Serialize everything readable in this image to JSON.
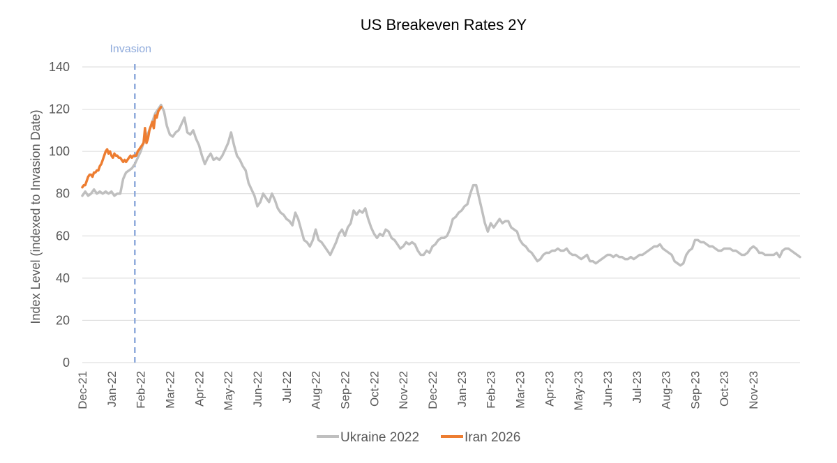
{
  "chart_data": {
    "type": "line",
    "title": "US Breakeven Rates 2Y",
    "xlabel": "",
    "ylabel": "Index Level (indexed to Invasion Date)",
    "ylim": [
      0,
      140
    ],
    "yticks": [
      0,
      20,
      40,
      60,
      80,
      100,
      120,
      140
    ],
    "x_unit": "months since Dec-21",
    "xlim": [
      0,
      24.6
    ],
    "xticks": [
      {
        "label": "Dec-21",
        "x": 0
      },
      {
        "label": "Jan-22",
        "x": 1
      },
      {
        "label": "Feb-22",
        "x": 2
      },
      {
        "label": "Mar-22",
        "x": 3
      },
      {
        "label": "Apr-22",
        "x": 4
      },
      {
        "label": "May-22",
        "x": 5
      },
      {
        "label": "Jun-22",
        "x": 6
      },
      {
        "label": "Jul-22",
        "x": 7
      },
      {
        "label": "Aug-22",
        "x": 8
      },
      {
        "label": "Sep-22",
        "x": 9
      },
      {
        "label": "Oct-22",
        "x": 10
      },
      {
        "label": "Nov-22",
        "x": 11
      },
      {
        "label": "Dec-22",
        "x": 12
      },
      {
        "label": "Jan-23",
        "x": 13
      },
      {
        "label": "Feb-23",
        "x": 14
      },
      {
        "label": "Mar-23",
        "x": 15
      },
      {
        "label": "Apr-23",
        "x": 16
      },
      {
        "label": "May-23",
        "x": 17
      },
      {
        "label": "Jun-23",
        "x": 18
      },
      {
        "label": "Jul-23",
        "x": 19
      },
      {
        "label": "Aug-23",
        "x": 20
      },
      {
        "label": "Sep-23",
        "x": 21
      },
      {
        "label": "Oct-23",
        "x": 22
      },
      {
        "label": "Nov-23",
        "x": 23
      }
    ],
    "annotation": {
      "label": "Invasion",
      "x": 1.8,
      "color": "#8eaadb"
    },
    "series": [
      {
        "name": "Ukraine 2022",
        "color": "#bfbfbf",
        "points": [
          [
            0.0,
            79
          ],
          [
            0.1,
            81
          ],
          [
            0.2,
            79
          ],
          [
            0.3,
            80
          ],
          [
            0.4,
            82
          ],
          [
            0.5,
            80
          ],
          [
            0.6,
            81
          ],
          [
            0.7,
            80
          ],
          [
            0.8,
            81
          ],
          [
            0.9,
            80
          ],
          [
            1.0,
            81
          ],
          [
            1.1,
            79
          ],
          [
            1.2,
            80
          ],
          [
            1.3,
            80
          ],
          [
            1.4,
            87
          ],
          [
            1.5,
            90
          ],
          [
            1.6,
            91
          ],
          [
            1.7,
            92
          ],
          [
            1.8,
            94
          ],
          [
            1.9,
            97
          ],
          [
            2.0,
            100
          ],
          [
            2.1,
            104
          ],
          [
            2.2,
            107
          ],
          [
            2.3,
            110
          ],
          [
            2.4,
            114
          ],
          [
            2.5,
            118
          ],
          [
            2.6,
            120
          ],
          [
            2.7,
            122
          ],
          [
            2.8,
            119
          ],
          [
            2.9,
            112
          ],
          [
            3.0,
            108
          ],
          [
            3.1,
            107
          ],
          [
            3.2,
            109
          ],
          [
            3.3,
            110
          ],
          [
            3.4,
            113
          ],
          [
            3.5,
            116
          ],
          [
            3.6,
            109
          ],
          [
            3.7,
            108
          ],
          [
            3.8,
            110
          ],
          [
            3.9,
            106
          ],
          [
            4.0,
            103
          ],
          [
            4.1,
            98
          ],
          [
            4.2,
            94
          ],
          [
            4.3,
            97
          ],
          [
            4.4,
            99
          ],
          [
            4.5,
            96
          ],
          [
            4.6,
            97
          ],
          [
            4.7,
            96
          ],
          [
            4.8,
            98
          ],
          [
            4.9,
            101
          ],
          [
            5.0,
            104
          ],
          [
            5.1,
            109
          ],
          [
            5.2,
            103
          ],
          [
            5.3,
            98
          ],
          [
            5.4,
            96
          ],
          [
            5.5,
            93
          ],
          [
            5.6,
            91
          ],
          [
            5.7,
            85
          ],
          [
            5.8,
            82
          ],
          [
            5.9,
            79
          ],
          [
            6.0,
            74
          ],
          [
            6.1,
            76
          ],
          [
            6.2,
            80
          ],
          [
            6.3,
            78
          ],
          [
            6.4,
            76
          ],
          [
            6.5,
            80
          ],
          [
            6.6,
            77
          ],
          [
            6.7,
            73
          ],
          [
            6.8,
            71
          ],
          [
            6.9,
            70
          ],
          [
            7.0,
            68
          ],
          [
            7.1,
            67
          ],
          [
            7.2,
            65
          ],
          [
            7.3,
            71
          ],
          [
            7.4,
            68
          ],
          [
            7.5,
            63
          ],
          [
            7.6,
            58
          ],
          [
            7.7,
            57
          ],
          [
            7.8,
            55
          ],
          [
            7.9,
            58
          ],
          [
            8.0,
            63
          ],
          [
            8.1,
            58
          ],
          [
            8.2,
            57
          ],
          [
            8.3,
            55
          ],
          [
            8.4,
            53
          ],
          [
            8.5,
            51
          ],
          [
            8.6,
            54
          ],
          [
            8.7,
            57
          ],
          [
            8.8,
            61
          ],
          [
            8.9,
            63
          ],
          [
            9.0,
            60
          ],
          [
            9.1,
            64
          ],
          [
            9.2,
            66
          ],
          [
            9.3,
            72
          ],
          [
            9.4,
            70
          ],
          [
            9.5,
            72
          ],
          [
            9.6,
            71
          ],
          [
            9.7,
            73
          ],
          [
            9.8,
            68
          ],
          [
            9.9,
            64
          ],
          [
            10.0,
            61
          ],
          [
            10.1,
            59
          ],
          [
            10.2,
            61
          ],
          [
            10.3,
            60
          ],
          [
            10.4,
            63
          ],
          [
            10.5,
            62
          ],
          [
            10.6,
            59
          ],
          [
            10.7,
            58
          ],
          [
            10.8,
            56
          ],
          [
            10.9,
            54
          ],
          [
            11.0,
            55
          ],
          [
            11.1,
            57
          ],
          [
            11.2,
            56
          ],
          [
            11.3,
            57
          ],
          [
            11.4,
            56
          ],
          [
            11.5,
            53
          ],
          [
            11.6,
            51
          ],
          [
            11.7,
            51
          ],
          [
            11.8,
            53
          ],
          [
            11.9,
            52
          ],
          [
            12.0,
            55
          ],
          [
            12.1,
            56
          ],
          [
            12.2,
            58
          ],
          [
            12.3,
            59
          ],
          [
            12.4,
            59
          ],
          [
            12.5,
            60
          ],
          [
            12.6,
            63
          ],
          [
            12.7,
            68
          ],
          [
            12.8,
            69
          ],
          [
            12.9,
            71
          ],
          [
            13.0,
            72
          ],
          [
            13.1,
            74
          ],
          [
            13.2,
            75
          ],
          [
            13.3,
            80
          ],
          [
            13.4,
            84
          ],
          [
            13.5,
            84
          ],
          [
            13.6,
            78
          ],
          [
            13.7,
            72
          ],
          [
            13.8,
            66
          ],
          [
            13.9,
            62
          ],
          [
            14.0,
            66
          ],
          [
            14.1,
            64
          ],
          [
            14.2,
            66
          ],
          [
            14.3,
            68
          ],
          [
            14.4,
            66
          ],
          [
            14.5,
            67
          ],
          [
            14.6,
            67
          ],
          [
            14.7,
            64
          ],
          [
            14.8,
            63
          ],
          [
            14.9,
            62
          ],
          [
            15.0,
            58
          ],
          [
            15.1,
            56
          ],
          [
            15.2,
            55
          ],
          [
            15.3,
            53
          ],
          [
            15.4,
            52
          ],
          [
            15.5,
            50
          ],
          [
            15.6,
            48
          ],
          [
            15.7,
            49
          ],
          [
            15.8,
            51
          ],
          [
            15.9,
            52
          ],
          [
            16.0,
            52
          ],
          [
            16.1,
            53
          ],
          [
            16.2,
            53
          ],
          [
            16.3,
            54
          ],
          [
            16.4,
            53
          ],
          [
            16.5,
            53
          ],
          [
            16.6,
            54
          ],
          [
            16.7,
            52
          ],
          [
            16.8,
            51
          ],
          [
            16.9,
            51
          ],
          [
            17.0,
            50
          ],
          [
            17.1,
            49
          ],
          [
            17.2,
            50
          ],
          [
            17.3,
            51
          ],
          [
            17.4,
            48
          ],
          [
            17.5,
            48
          ],
          [
            17.6,
            47
          ],
          [
            17.7,
            48
          ],
          [
            17.8,
            49
          ],
          [
            17.9,
            50
          ],
          [
            18.0,
            51
          ],
          [
            18.1,
            51
          ],
          [
            18.2,
            50
          ],
          [
            18.3,
            51
          ],
          [
            18.4,
            50
          ],
          [
            18.5,
            50
          ],
          [
            18.6,
            49
          ],
          [
            18.7,
            49
          ],
          [
            18.8,
            50
          ],
          [
            18.9,
            49
          ],
          [
            19.0,
            50
          ],
          [
            19.1,
            51
          ],
          [
            19.2,
            51
          ],
          [
            19.3,
            52
          ],
          [
            19.4,
            53
          ],
          [
            19.5,
            54
          ],
          [
            19.6,
            55
          ],
          [
            19.7,
            55
          ],
          [
            19.8,
            56
          ],
          [
            19.9,
            54
          ],
          [
            20.0,
            53
          ],
          [
            20.1,
            52
          ],
          [
            20.2,
            51
          ],
          [
            20.3,
            48
          ],
          [
            20.4,
            47
          ],
          [
            20.5,
            46
          ],
          [
            20.6,
            47
          ],
          [
            20.7,
            51
          ],
          [
            20.8,
            53
          ],
          [
            20.9,
            54
          ],
          [
            21.0,
            58
          ],
          [
            21.1,
            58
          ],
          [
            21.2,
            57
          ],
          [
            21.3,
            57
          ],
          [
            21.4,
            56
          ],
          [
            21.5,
            55
          ],
          [
            21.6,
            55
          ],
          [
            21.7,
            54
          ],
          [
            21.8,
            53
          ],
          [
            21.9,
            53
          ],
          [
            22.0,
            54
          ],
          [
            22.1,
            54
          ],
          [
            22.2,
            54
          ],
          [
            22.3,
            53
          ],
          [
            22.4,
            53
          ],
          [
            22.5,
            52
          ],
          [
            22.6,
            51
          ],
          [
            22.7,
            51
          ],
          [
            22.8,
            52
          ],
          [
            22.9,
            54
          ],
          [
            23.0,
            55
          ],
          [
            23.1,
            54
          ],
          [
            23.2,
            52
          ],
          [
            23.3,
            52
          ],
          [
            23.4,
            51
          ],
          [
            23.5,
            51
          ],
          [
            23.6,
            51
          ],
          [
            23.7,
            51
          ],
          [
            23.8,
            52
          ],
          [
            23.9,
            50
          ],
          [
            24.0,
            53
          ],
          [
            24.1,
            54
          ],
          [
            24.2,
            54
          ],
          [
            24.3,
            53
          ],
          [
            24.4,
            52
          ],
          [
            24.5,
            51
          ],
          [
            24.6,
            50
          ]
        ]
      },
      {
        "name": "Iran 2026",
        "color": "#ed7d31",
        "points": [
          [
            0.0,
            83
          ],
          [
            0.05,
            84
          ],
          [
            0.1,
            84
          ],
          [
            0.15,
            86
          ],
          [
            0.2,
            88
          ],
          [
            0.25,
            89
          ],
          [
            0.3,
            89
          ],
          [
            0.35,
            88
          ],
          [
            0.4,
            90
          ],
          [
            0.45,
            90
          ],
          [
            0.5,
            91
          ],
          [
            0.55,
            91
          ],
          [
            0.6,
            93
          ],
          [
            0.65,
            94
          ],
          [
            0.7,
            96
          ],
          [
            0.75,
            98
          ],
          [
            0.8,
            100
          ],
          [
            0.85,
            101
          ],
          [
            0.9,
            99
          ],
          [
            0.95,
            100
          ],
          [
            1.0,
            98
          ],
          [
            1.05,
            97
          ],
          [
            1.1,
            99
          ],
          [
            1.15,
            98
          ],
          [
            1.2,
            98
          ],
          [
            1.25,
            97
          ],
          [
            1.3,
            97
          ],
          [
            1.35,
            96
          ],
          [
            1.4,
            95
          ],
          [
            1.45,
            96
          ],
          [
            1.5,
            95
          ],
          [
            1.55,
            96
          ],
          [
            1.6,
            97
          ],
          [
            1.65,
            98
          ],
          [
            1.7,
            97
          ],
          [
            1.75,
            98
          ],
          [
            1.8,
            98
          ],
          [
            1.85,
            98
          ],
          [
            1.9,
            100
          ],
          [
            1.95,
            101
          ],
          [
            2.0,
            102
          ],
          [
            2.05,
            103
          ],
          [
            2.1,
            104
          ],
          [
            2.15,
            111
          ],
          [
            2.2,
            104
          ],
          [
            2.25,
            106
          ],
          [
            2.3,
            110
          ],
          [
            2.35,
            112
          ],
          [
            2.4,
            114
          ],
          [
            2.45,
            111
          ],
          [
            2.5,
            117
          ],
          [
            2.55,
            116
          ],
          [
            2.6,
            119
          ],
          [
            2.65,
            120
          ],
          [
            2.7,
            121
          ]
        ]
      }
    ]
  }
}
